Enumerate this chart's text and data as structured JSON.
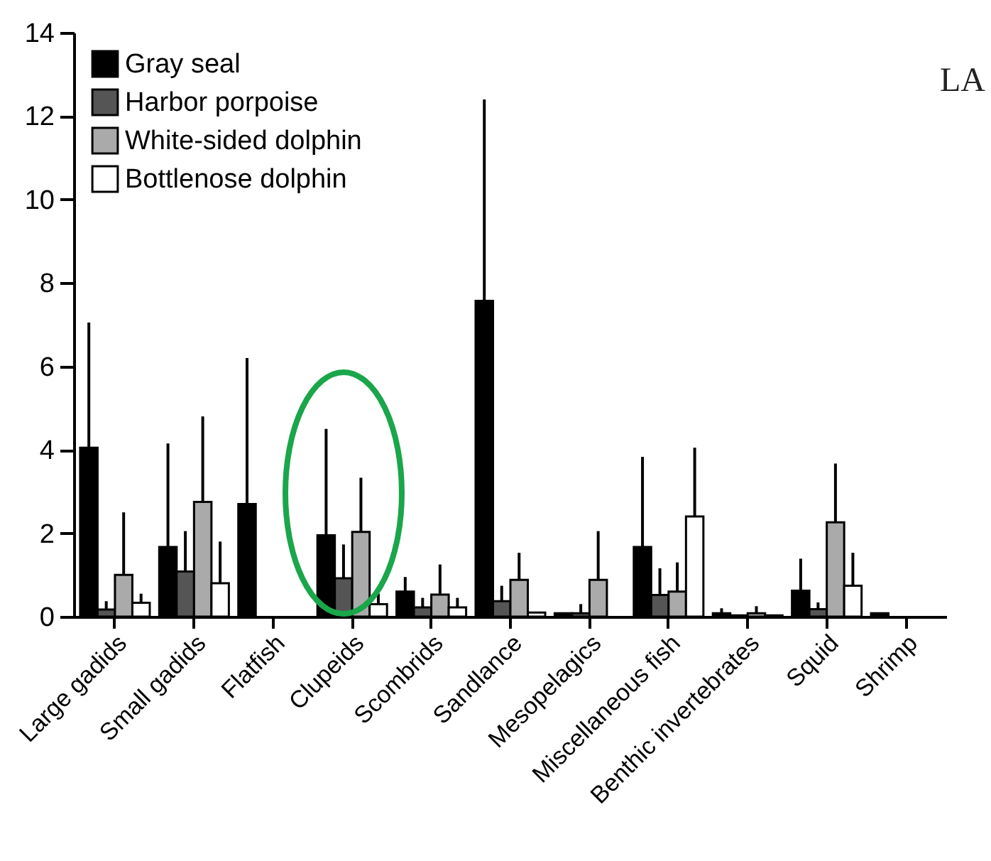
{
  "chart_data": {
    "type": "bar",
    "categories": [
      "Large gadids",
      "Small gadids",
      "Flatfish",
      "Clupeids",
      "Scombrids",
      "Sandlance",
      "Mesopelagics",
      "Miscellaneous fish",
      "Benthic invertebrates",
      "Squid",
      "Shrimp"
    ],
    "series": [
      {
        "name": "Gray seal",
        "color": "#000000",
        "values": [
          4.05,
          1.67,
          2.7,
          1.95,
          0.6,
          7.57,
          0.08,
          1.67,
          0.08,
          0.62,
          0.08
        ],
        "errors": [
          [
            4.05,
            7.05
          ],
          [
            1.67,
            4.15
          ],
          [
            2.7,
            6.2
          ],
          [
            1.95,
            4.5
          ],
          [
            0.6,
            0.95
          ],
          [
            7.57,
            12.4
          ],
          null,
          [
            1.67,
            3.83
          ],
          [
            0.08,
            0.2
          ],
          [
            0.62,
            1.39
          ],
          null
        ]
      },
      {
        "name": "Harbor porpoise",
        "color": "#555555",
        "values": [
          0.17,
          1.08,
          null,
          0.92,
          0.22,
          0.37,
          0.08,
          0.52,
          0.03,
          0.18,
          null
        ],
        "errors": [
          [
            0.17,
            0.37
          ],
          [
            1.08,
            2.05
          ],
          null,
          [
            0.92,
            1.73
          ],
          [
            0.22,
            0.45
          ],
          [
            0.37,
            0.74
          ],
          [
            0.08,
            0.3
          ],
          [
            0.52,
            1.16
          ],
          null,
          [
            0.18,
            0.34
          ],
          null
        ]
      },
      {
        "name": "White-sided dolphin",
        "color": "#aaaaaa",
        "values": [
          1.0,
          2.75,
          null,
          2.03,
          0.53,
          0.88,
          0.88,
          0.6,
          0.08,
          2.26,
          null
        ],
        "errors": [
          [
            1.0,
            2.5
          ],
          [
            2.75,
            4.8
          ],
          null,
          [
            2.03,
            3.33
          ],
          [
            0.53,
            1.25
          ],
          [
            0.88,
            1.53
          ],
          [
            0.88,
            2.05
          ],
          [
            0.6,
            1.3
          ],
          [
            0.08,
            0.25
          ],
          [
            2.26,
            3.67
          ],
          null
        ]
      },
      {
        "name": "Bottlenose dolphin",
        "color": "#ffffff",
        "values": [
          0.33,
          0.8,
          null,
          0.3,
          0.22,
          0.1,
          null,
          2.4,
          0.03,
          0.74,
          null
        ],
        "errors": [
          [
            0.33,
            0.55
          ],
          [
            0.8,
            1.8
          ],
          null,
          [
            0.3,
            0.55
          ],
          [
            0.22,
            0.45
          ],
          null,
          null,
          [
            2.4,
            4.05
          ],
          null,
          [
            0.74,
            1.53
          ],
          null
        ]
      }
    ],
    "ylim": [
      0,
      14
    ],
    "yticks": [
      0,
      2,
      4,
      6,
      8,
      10,
      12,
      14
    ],
    "legend": "top left",
    "grid": false,
    "annotations": [
      "LA"
    ]
  }
}
